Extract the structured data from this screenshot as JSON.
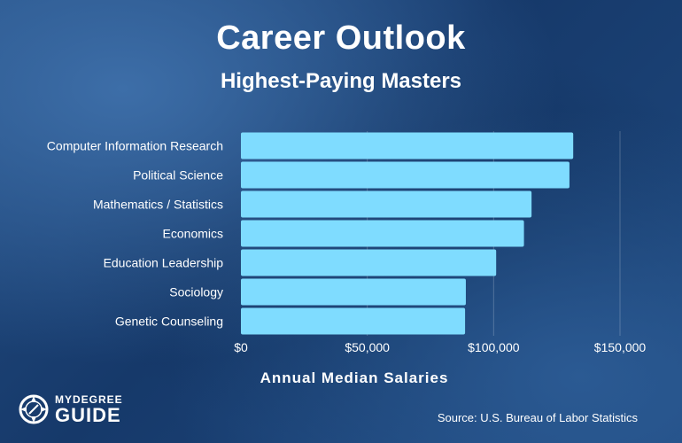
{
  "header": {
    "title": "Career Outlook",
    "subtitle": "Highest-Paying Masters"
  },
  "chart_data": {
    "type": "bar",
    "orientation": "horizontal",
    "title": "Career Outlook",
    "subtitle": "Highest-Paying Masters",
    "categories": [
      "Computer Information Research",
      "Political Science",
      "Mathematics / Statistics",
      "Economics",
      "Education Leadership",
      "Sociology",
      "Genetic Counseling"
    ],
    "values": [
      131490,
      130000,
      115000,
      112000,
      101000,
      89000,
      88700
    ],
    "xlabel": "Annual Median Salaries",
    "ylabel": "",
    "xlim": [
      0,
      150000
    ],
    "ticks": [
      0,
      50000,
      100000,
      150000
    ],
    "tick_labels": [
      "$0",
      "$50,000",
      "$100,000",
      "$150,000"
    ],
    "grid": true,
    "bar_color": "#7fdcff"
  },
  "footer": {
    "source": "Source: U.S. Bureau of Labor Statistics",
    "logo_line1": "MYDEGREE",
    "logo_line2": "GUIDE"
  }
}
